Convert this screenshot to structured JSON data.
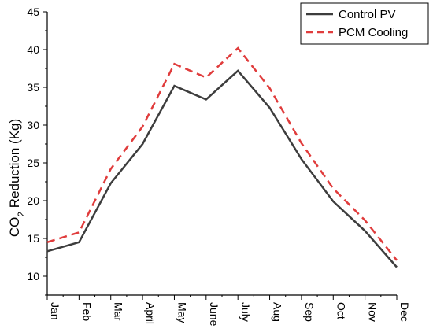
{
  "chart_data": {
    "type": "line",
    "categories": [
      "Jan",
      "Feb",
      "Mar",
      "April",
      "May",
      "June",
      "July",
      "Aug",
      "Sep",
      "Oct",
      "Nov",
      "Dec"
    ],
    "series": [
      {
        "name": "Control PV",
        "values": [
          13.3,
          14.5,
          22.3,
          27.5,
          35.2,
          33.4,
          37.2,
          32.3,
          25.5,
          19.9,
          16.0,
          11.2
        ],
        "color": "#3d3d3d",
        "style": "solid"
      },
      {
        "name": "PCM Cooling",
        "values": [
          14.5,
          15.8,
          24.2,
          29.8,
          38.1,
          36.3,
          40.2,
          34.9,
          27.6,
          21.6,
          17.4,
          12.1
        ],
        "color": "#e03c3c",
        "style": "dashed"
      }
    ],
    "title": "",
    "xlabel": "",
    "ylabel_main": "CO",
    "ylabel_sub": "2",
    "ylabel_rest": " Reduction (Kg)",
    "yticks": [
      "10",
      "15",
      "20",
      "25",
      "30",
      "35",
      "40",
      "45"
    ],
    "ylim": [
      7.5,
      45
    ],
    "grid": false,
    "legend_position": "top-right"
  }
}
